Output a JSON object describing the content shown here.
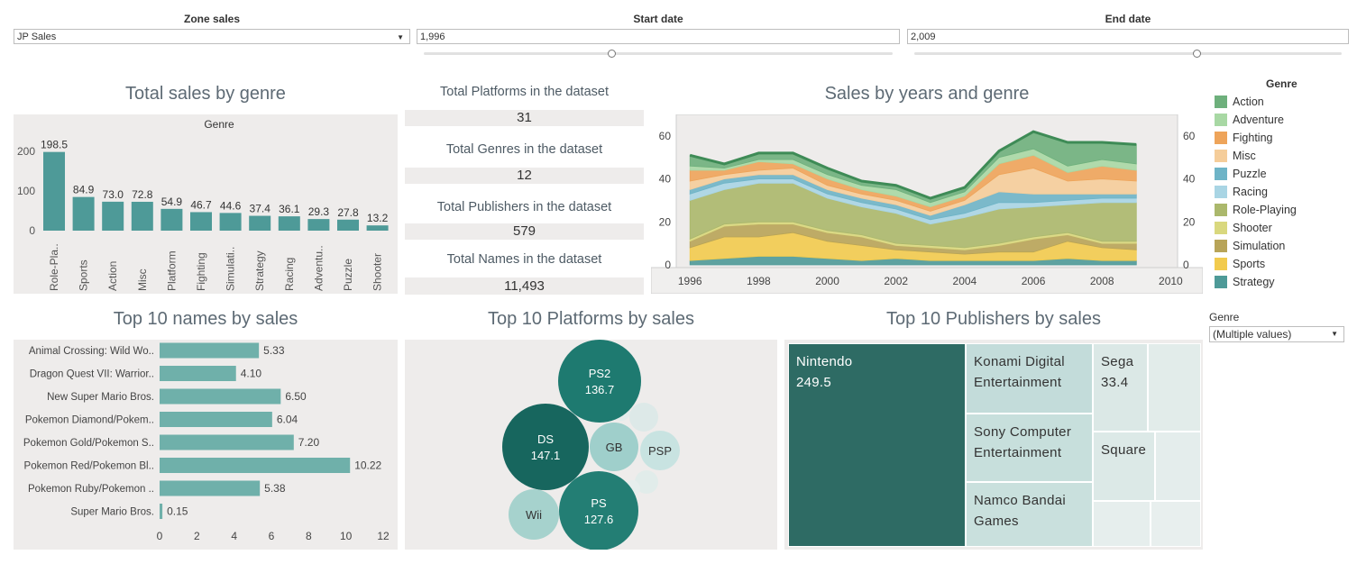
{
  "filters": {
    "zone": {
      "title": "Zone sales",
      "value": "JP Sales"
    },
    "start": {
      "title": "Start date",
      "value": "1,996",
      "level": 0.4
    },
    "end": {
      "title": "End date",
      "value": "2,009",
      "level": 0.66
    }
  },
  "genre_bar": {
    "title": "Total sales by genre",
    "header": "Genre",
    "chart_data": {
      "type": "bar",
      "categories": [
        "Role-Pla..",
        "Sports",
        "Action",
        "Misc",
        "Platform",
        "Fighting",
        "Simulati..",
        "Strategy",
        "Racing",
        "Adventu..",
        "Puzzle",
        "Shooter"
      ],
      "values": [
        198.5,
        84.9,
        73.0,
        72.8,
        54.9,
        46.7,
        44.6,
        37.4,
        36.1,
        29.3,
        27.8,
        13.2
      ],
      "value_labels": [
        "198.5",
        "84.9",
        "73.0",
        "72.8",
        "54.9",
        "46.7",
        "44.6",
        "37.4",
        "36.1",
        "29.3",
        "27.8",
        "13.2"
      ],
      "yticks": [
        "0",
        "100",
        "200"
      ],
      "ylim": [
        0,
        200
      ],
      "color": "#4e9a98"
    }
  },
  "kpis": [
    {
      "title": "Total Platforms in the dataset",
      "value": "31"
    },
    {
      "title": "Total Genres in the dataset",
      "value": "12"
    },
    {
      "title": "Total Publishers in the dataset",
      "value": "579"
    },
    {
      "title": "Total Names in the dataset",
      "value": "11,493"
    }
  ],
  "area_chart": {
    "title": "Sales by years and genre",
    "chart_data": {
      "type": "area",
      "x": [
        1996,
        1997,
        1998,
        1999,
        2000,
        2001,
        2002,
        2003,
        2004,
        2005,
        2006,
        2007,
        2008,
        2009
      ],
      "x_ticks": [
        "1996",
        "1998",
        "2000",
        "2002",
        "2004",
        "2006",
        "2008",
        "2010"
      ],
      "y_ticks": [
        "0",
        "20",
        "40",
        "60"
      ],
      "ylim": [
        0,
        70
      ],
      "xlim": [
        1995.6,
        2010.2
      ],
      "series": [
        {
          "name": "Strategy",
          "color": "#4e9a98",
          "values": [
            2,
            3,
            4,
            4,
            3,
            2,
            3,
            2,
            2,
            2,
            2,
            3,
            2,
            2
          ]
        },
        {
          "name": "Sports",
          "color": "#f2cb4e",
          "values": [
            6,
            10,
            9,
            11,
            8,
            7,
            4,
            4,
            3,
            4,
            4,
            8,
            6,
            5
          ]
        },
        {
          "name": "Simulation",
          "color": "#b8a458",
          "values": [
            3,
            5,
            6,
            4,
            4,
            4,
            2,
            2,
            2,
            3,
            6,
            3,
            2,
            3
          ]
        },
        {
          "name": "Shooter",
          "color": "#d9d87e",
          "values": [
            1,
            1,
            1,
            1,
            1,
            1,
            1,
            1,
            1,
            1,
            1,
            1,
            1,
            1
          ]
        },
        {
          "name": "Role-Playing",
          "color": "#abb86c",
          "values": [
            18,
            16,
            18,
            18,
            15,
            13,
            14,
            10,
            14,
            16,
            14,
            13,
            18,
            18
          ]
        },
        {
          "name": "Racing",
          "color": "#a9d5e4",
          "values": [
            3,
            3,
            2,
            2,
            2,
            2,
            2,
            2,
            2,
            3,
            2,
            2,
            2,
            2
          ]
        },
        {
          "name": "Puzzle",
          "color": "#6eb4c7",
          "values": [
            2,
            2,
            2,
            2,
            2,
            2,
            2,
            2,
            4,
            5,
            4,
            3,
            2,
            2
          ]
        },
        {
          "name": "Misc",
          "color": "#f5cd9a",
          "values": [
            4,
            2,
            2,
            3,
            2,
            2,
            2,
            2,
            2,
            8,
            12,
            6,
            7,
            6
          ]
        },
        {
          "name": "Fighting",
          "color": "#eea45a",
          "values": [
            5,
            2,
            4,
            2,
            3,
            2,
            2,
            2,
            2,
            5,
            6,
            4,
            6,
            5
          ]
        },
        {
          "name": "Adventure",
          "color": "#a8d8a4",
          "values": [
            2,
            1,
            1,
            2,
            2,
            2,
            3,
            2,
            2,
            3,
            3,
            3,
            3,
            3
          ]
        },
        {
          "name": "Action",
          "color": "#6eb07c",
          "values": [
            5,
            2,
            3,
            3,
            3,
            2,
            2,
            2,
            2,
            3,
            8,
            11,
            8,
            9
          ]
        }
      ]
    }
  },
  "legend": {
    "title": "Genre",
    "items": [
      {
        "label": "Action",
        "color": "#6eb07c"
      },
      {
        "label": "Adventure",
        "color": "#a8d8a4"
      },
      {
        "label": "Fighting",
        "color": "#eea45a"
      },
      {
        "label": "Misc",
        "color": "#f5cd9a"
      },
      {
        "label": "Puzzle",
        "color": "#6eb4c7"
      },
      {
        "label": "Racing",
        "color": "#a9d5e4"
      },
      {
        "label": "Role-Playing",
        "color": "#abb86c"
      },
      {
        "label": "Shooter",
        "color": "#d9d87e"
      },
      {
        "label": "Simulation",
        "color": "#b8a458"
      },
      {
        "label": "Sports",
        "color": "#f2cb4e"
      },
      {
        "label": "Strategy",
        "color": "#4e9a98"
      }
    ]
  },
  "genre_filter": {
    "title": "Genre",
    "value": "(Multiple values)"
  },
  "names_bar": {
    "title": "Top 10 names by sales",
    "chart_data": {
      "type": "bar",
      "orientation": "horizontal",
      "categories": [
        "Animal Crossing: Wild Wo..",
        "Dragon Quest VII: Warrior..",
        "New Super Mario Bros.",
        "Pokemon Diamond/Pokem..",
        "Pokemon Gold/Pokemon S..",
        "Pokemon Red/Pokemon Bl..",
        "Pokemon Ruby/Pokemon ..",
        "Super Mario Bros."
      ],
      "values": [
        5.33,
        4.1,
        6.5,
        6.04,
        7.2,
        10.22,
        5.38,
        0.15
      ],
      "value_labels": [
        "5.33",
        "4.10",
        "6.50",
        "6.04",
        "7.20",
        "10.22",
        "5.38",
        "0.15"
      ],
      "xticks": [
        "0",
        "2",
        "4",
        "6",
        "8",
        "10",
        "12"
      ],
      "xlim": [
        0,
        12
      ],
      "color": "#6fb0aa"
    }
  },
  "platforms": {
    "title": "Top 10 Platforms by sales",
    "bubbles": [
      {
        "label": "PS2",
        "value": "136.7",
        "color": "#1e7a70",
        "text_color": "#ffffff"
      },
      {
        "label": "DS",
        "value": "147.1",
        "color": "#17665e",
        "text_color": "#ffffff"
      },
      {
        "label": "GB",
        "value": "",
        "color": "#9fcfcb",
        "text_color": "#333333"
      },
      {
        "label": "PSP",
        "value": "",
        "color": "#c8e3e1",
        "text_color": "#333333"
      },
      {
        "label": "PS",
        "value": "127.6",
        "color": "#237e74",
        "text_color": "#ffffff"
      },
      {
        "label": "Wii",
        "value": "",
        "color": "#a6d2cd",
        "text_color": "#333333"
      },
      {
        "label": "",
        "value": "",
        "color": "#dde9e8",
        "text_color": "#333333"
      },
      {
        "label": "",
        "value": "",
        "color": "#e1ecea",
        "text_color": "#333333"
      },
      {
        "label": "",
        "value": "",
        "color": "#e3eceb",
        "text_color": "#333333"
      },
      {
        "label": "",
        "value": "",
        "color": "#e6eeed",
        "text_color": "#333333"
      }
    ]
  },
  "publishers": {
    "title": "Top 10 Publishers by sales",
    "cells": [
      {
        "label": "Nintendo",
        "value": "249.5",
        "color": "#2e6b64",
        "text_color": "#ffffff"
      },
      {
        "label": "Konami Digital Entertainment",
        "value": "",
        "color": "#c3dcda",
        "text_color": "#333333"
      },
      {
        "label": "Sega",
        "value": "33.4",
        "color": "#dbe8e6",
        "text_color": "#333333"
      },
      {
        "label": "",
        "value": "",
        "color": "#e2ecea",
        "text_color": "#333333"
      },
      {
        "label": "Sony Computer Entertainment",
        "value": "",
        "color": "#c7dfdc",
        "text_color": "#333333"
      },
      {
        "label": "Square",
        "value": "",
        "color": "#dce9e7",
        "text_color": "#333333"
      },
      {
        "label": "",
        "value": "",
        "color": "#e4edec",
        "text_color": "#333333"
      },
      {
        "label": "Namco Bandai Games",
        "value": "",
        "color": "#c9e0dd",
        "text_color": "#333333"
      },
      {
        "label": "",
        "value": "",
        "color": "#e6eeed",
        "text_color": "#333333"
      },
      {
        "label": "",
        "value": "",
        "color": "#e8efee",
        "text_color": "#333333"
      }
    ]
  }
}
